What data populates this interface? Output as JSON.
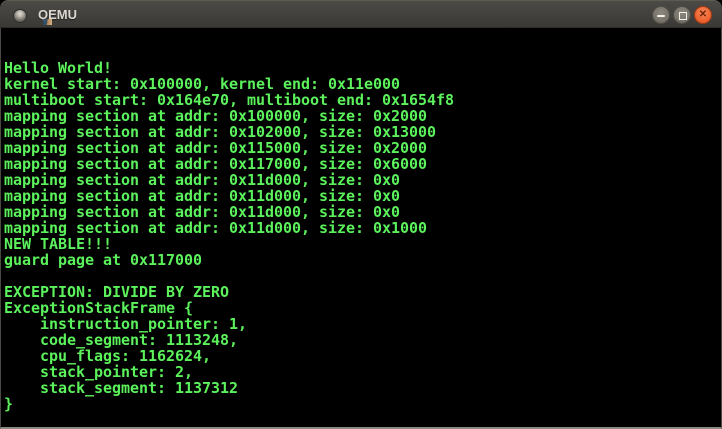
{
  "window": {
    "title": "QEMU",
    "icons": {
      "window_icon": "gray-sphere",
      "minimize": "horizontal-bar",
      "maximize": "square-outline",
      "close_glyph": "✕"
    }
  },
  "colors": {
    "titlebar_top": "#4c4a45",
    "titlebar_bottom": "#3b3935",
    "titlebar_text": "#dcd8d0",
    "close_button_orange": "#ef6a37",
    "control_button_gray": "#7b766d",
    "terminal_background": "#000000",
    "terminal_text_green": "#5cf25c"
  },
  "terminal": {
    "cols": 80,
    "rows": 25,
    "lines": [
      "Hello World!",
      "kernel start: 0x100000, kernel end: 0x11e000",
      "multiboot start: 0x164e70, multiboot end: 0x1654f8",
      "mapping section at addr: 0x100000, size: 0x2000",
      "mapping section at addr: 0x102000, size: 0x13000",
      "mapping section at addr: 0x115000, size: 0x2000",
      "mapping section at addr: 0x117000, size: 0x6000",
      "mapping section at addr: 0x11d000, size: 0x0",
      "mapping section at addr: 0x11d000, size: 0x0",
      "mapping section at addr: 0x11d000, size: 0x0",
      "mapping section at addr: 0x11d000, size: 0x1000",
      "NEW TABLE!!!",
      "guard page at 0x117000",
      "",
      "EXCEPTION: DIVIDE BY ZERO",
      "ExceptionStackFrame {",
      "    instruction_pointer: 1,",
      "    code_segment: 1113248,",
      "    cpu_flags: 1162624,",
      "    stack_pointer: 2,",
      "    stack_segment: 1137312",
      "}"
    ]
  }
}
